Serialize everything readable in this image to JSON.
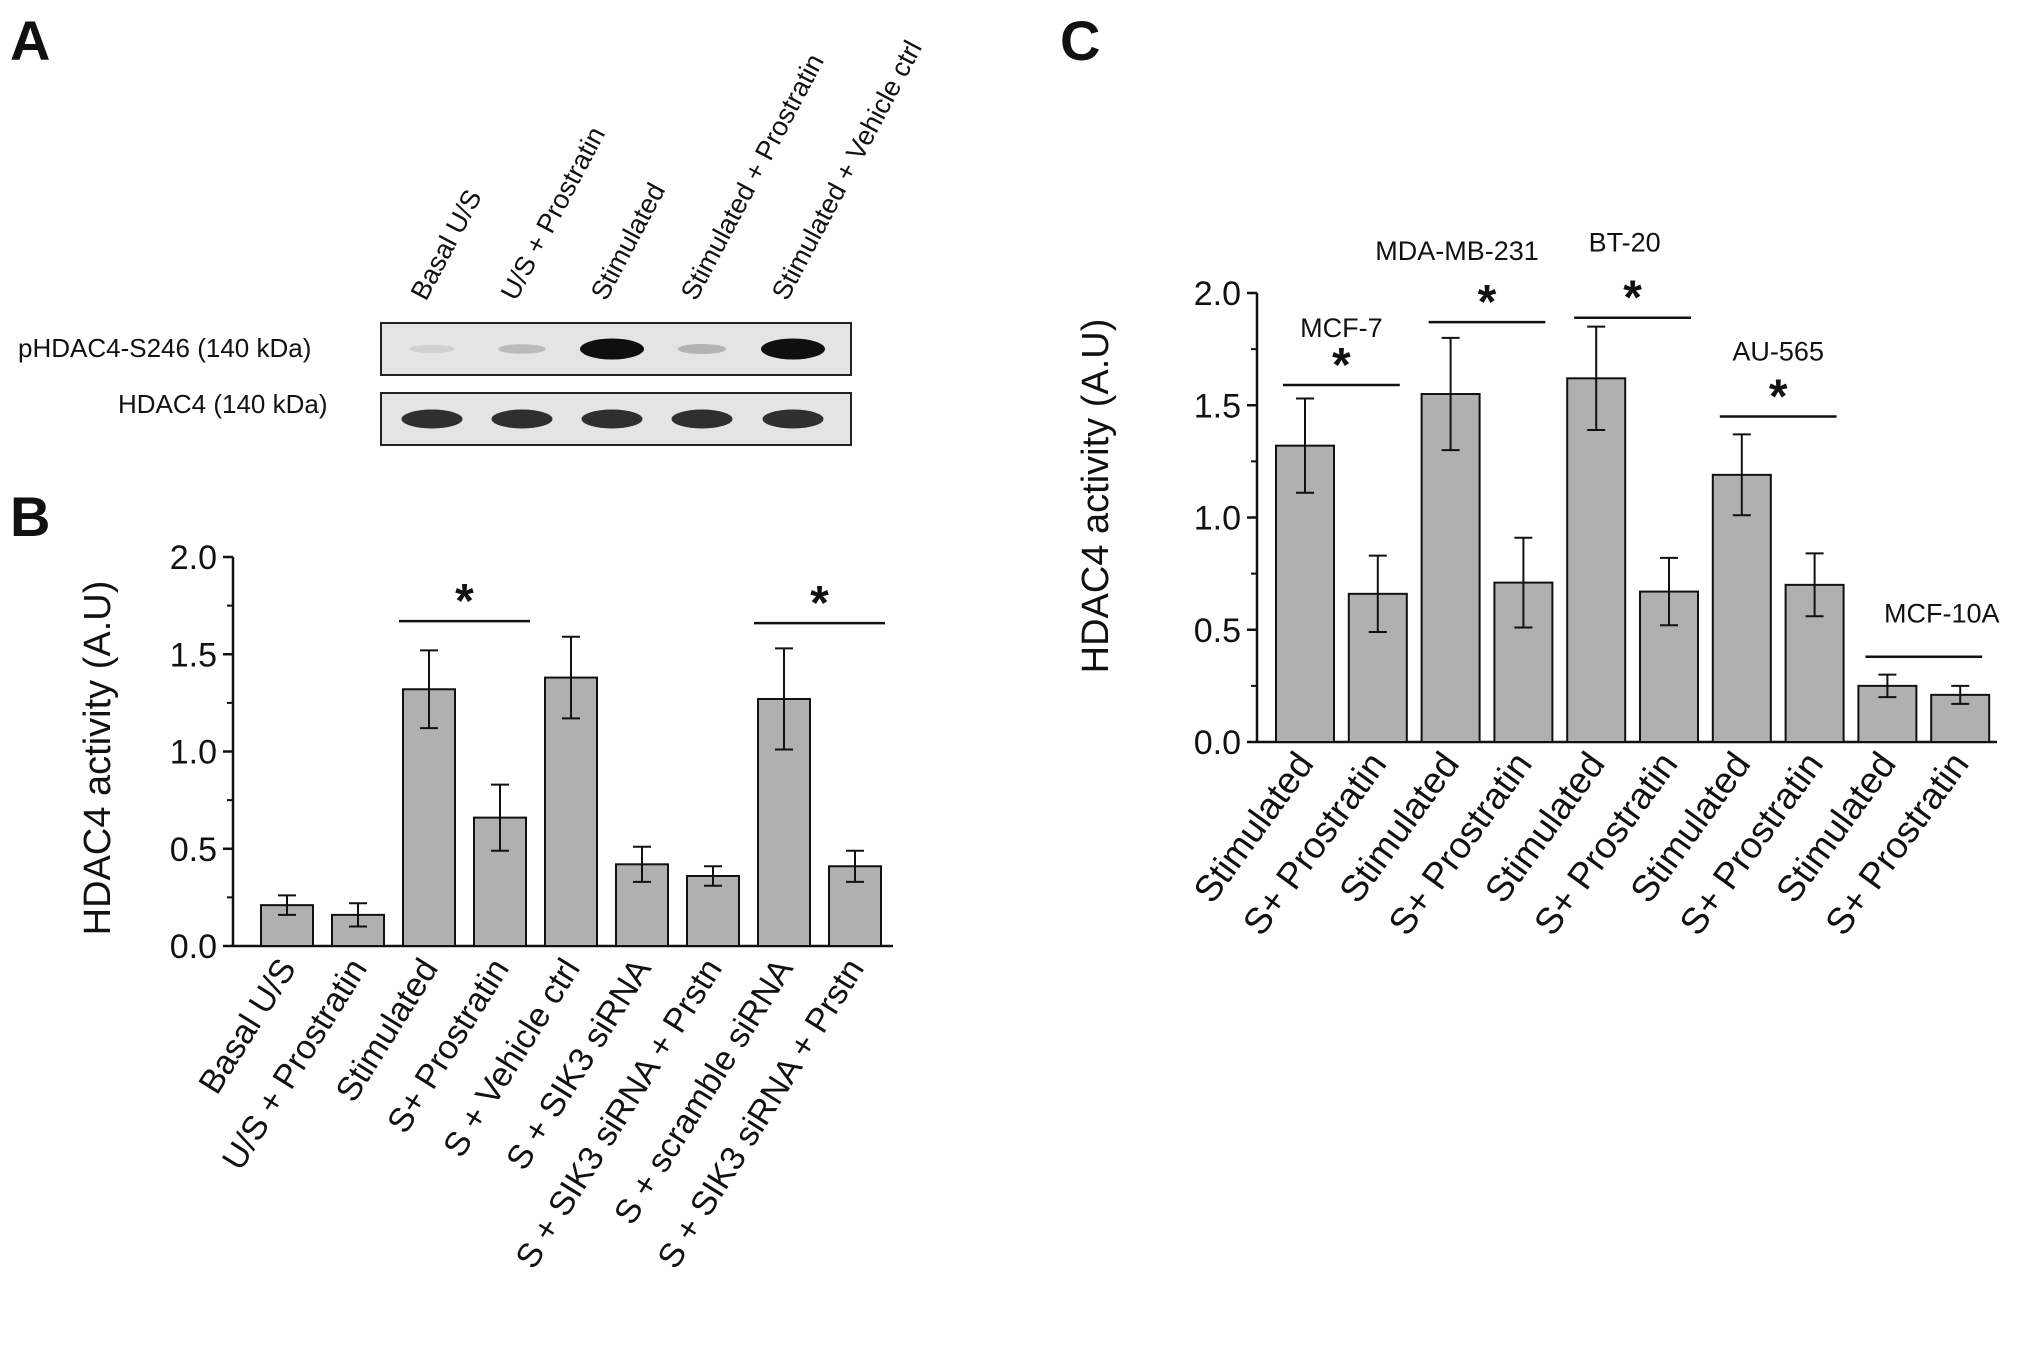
{
  "panels": {
    "A": {
      "letter": "A",
      "lanes": [
        "Basal U/S",
        "U/S + Prostratin",
        "Stimulated",
        "Stimulated + Prostratin",
        "Stimulated + Vehicle ctrl"
      ],
      "blots": [
        {
          "label": "pHDAC4-S246 (140 kDa)",
          "band_intensity": [
            0.08,
            0.18,
            1.0,
            0.22,
            1.0
          ]
        },
        {
          "label": "HDAC4 (140 kDa)",
          "band_intensity": [
            0.85,
            0.85,
            0.85,
            0.85,
            0.85
          ]
        }
      ]
    },
    "B": {
      "letter": "B"
    },
    "C": {
      "letter": "C"
    }
  },
  "chart_data": [
    {
      "panel": "B",
      "type": "bar",
      "ylabel": "HDAC4 activity (A.U)",
      "ylim": [
        0,
        2.0
      ],
      "yticks": [
        "0.0",
        "0.5",
        "1.0",
        "1.5",
        "2.0"
      ],
      "bar_color": "#b0b0b0",
      "categories": [
        "Basal U/S",
        "U/S + Prostratin",
        "Stimulated",
        "S+ Prostratin",
        "S + Vehicle ctrl",
        "S + SIK3 siRNA",
        "S + SIK3 siRNA + Prstn",
        "S + scramble siRNA",
        "S + SIK3 siRNA + Prstn"
      ],
      "values": [
        0.21,
        0.16,
        1.32,
        0.66,
        1.38,
        0.42,
        0.36,
        1.27,
        0.41
      ],
      "errors": [
        0.05,
        0.06,
        0.2,
        0.17,
        0.21,
        0.09,
        0.05,
        0.26,
        0.08
      ],
      "significance": [
        {
          "from": 2,
          "to": 3,
          "label": "*",
          "y": 1.67
        },
        {
          "from": 7,
          "to": 8,
          "label": "*",
          "y": 1.66
        }
      ]
    },
    {
      "panel": "C",
      "type": "bar",
      "ylabel": "HDAC4 activity (A.U)",
      "ylim": [
        0,
        2.0
      ],
      "yticks": [
        "0.0",
        "0.5",
        "1.0",
        "1.5",
        "2.0"
      ],
      "bar_color": "#b0b0b0",
      "categories": [
        "Stimulated",
        "S+ Prostratin",
        "Stimulated",
        "S+ Prostratin",
        "Stimulated",
        "S+ Prostratin",
        "Stimulated",
        "S+ Prostratin",
        "Stimulated",
        "S+ Prostratin"
      ],
      "values": [
        1.32,
        0.66,
        1.55,
        0.71,
        1.62,
        0.67,
        1.19,
        0.7,
        0.25,
        0.21
      ],
      "errors": [
        0.21,
        0.17,
        0.25,
        0.2,
        0.23,
        0.15,
        0.18,
        0.14,
        0.05,
        0.04
      ],
      "groups": [
        {
          "name": "MCF-7",
          "from": 0,
          "to": 1,
          "sig": "*",
          "y": 1.59
        },
        {
          "name": "MDA-MB-231",
          "from": 2,
          "to": 3,
          "sig": "*",
          "y": 1.87
        },
        {
          "name": "BT-20",
          "from": 4,
          "to": 5,
          "sig": "*",
          "y": 1.89
        },
        {
          "name": "AU-565",
          "from": 6,
          "to": 7,
          "sig": "*",
          "y": 1.45
        },
        {
          "name": "MCF-10A",
          "from": 8,
          "to": 9,
          "sig": "",
          "y": 0.38
        }
      ]
    }
  ]
}
